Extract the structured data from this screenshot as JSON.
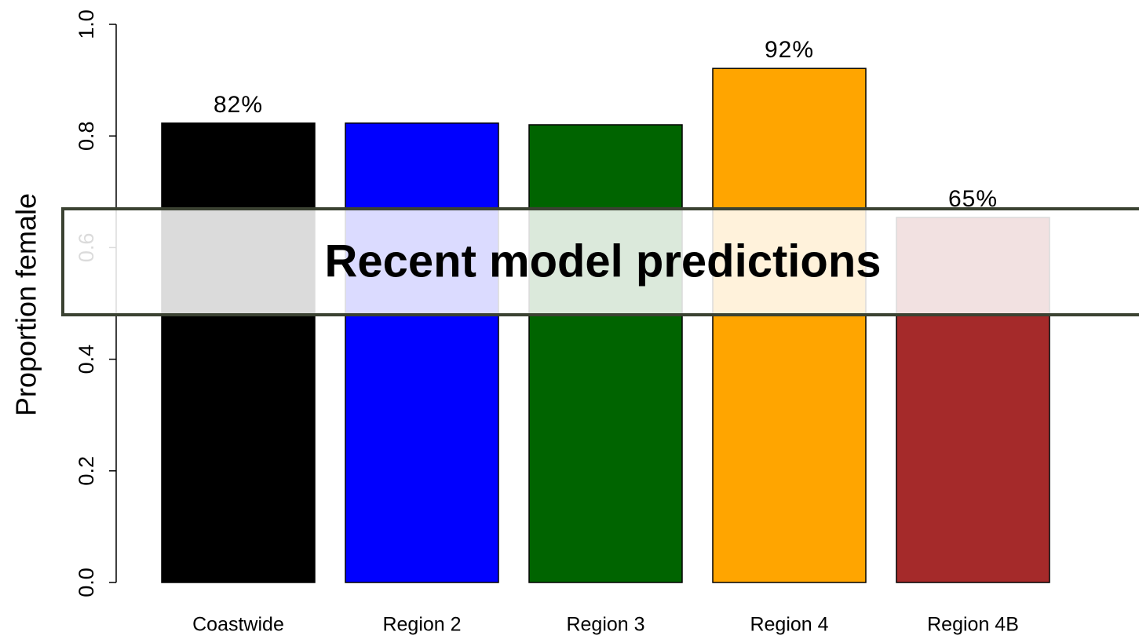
{
  "chart_data": {
    "type": "bar",
    "ylabel": "Proportion female",
    "annotation": "Recent model predictions",
    "categories": [
      "Coastwide",
      "Region 2",
      "Region 3",
      "Region 4",
      "Region 4B"
    ],
    "values": [
      0.823,
      0.823,
      0.82,
      0.921,
      0.654
    ],
    "value_labels": [
      "82%",
      null,
      null,
      "92%",
      "65%"
    ],
    "colors": [
      "#000000",
      "#0000ff",
      "#006400",
      "#ffa500",
      "#a52a2a"
    ],
    "ylim": [
      0,
      1
    ],
    "yticks": [
      {
        "value": 0,
        "label": "0.0"
      },
      0.2,
      0.4,
      0.6,
      0.8,
      {
        "value": 1,
        "label": "1.0"
      }
    ]
  }
}
